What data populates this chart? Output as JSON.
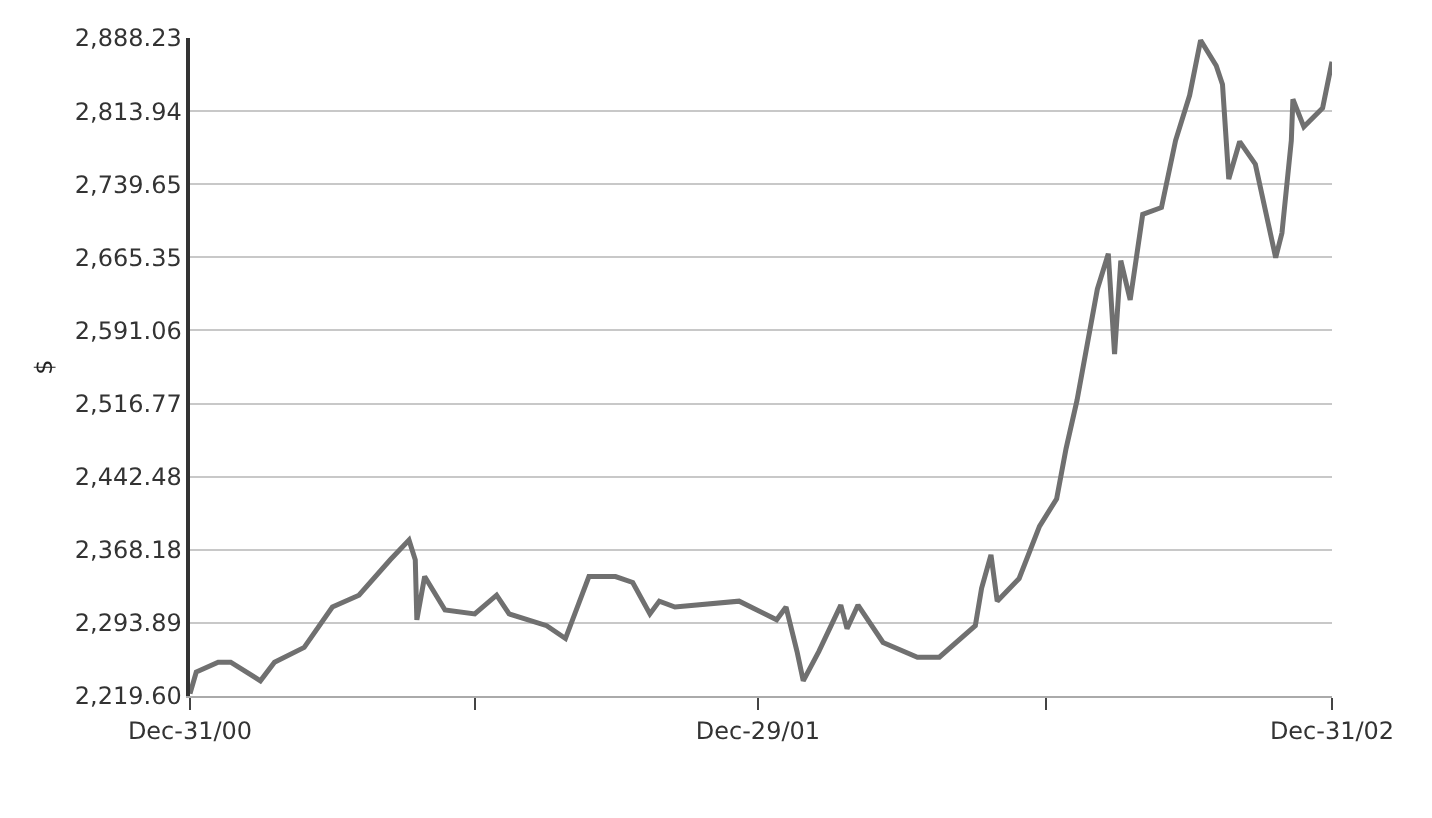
{
  "chart_data": {
    "type": "line",
    "ylabel": "$",
    "grid": "y",
    "marker": "none",
    "line_style": "solid",
    "xlim": [
      "2000-12-31",
      "2002-12-31"
    ],
    "xticks": [
      {
        "value": "2000-12-31",
        "label": "Dec-31/00"
      },
      {
        "value": "2001-07-01",
        "label": null
      },
      {
        "value": "2001-12-29",
        "label": "Dec-29/01"
      },
      {
        "value": "2002-07-01",
        "label": null
      },
      {
        "value": "2002-12-31",
        "label": "Dec-31/02"
      }
    ],
    "ylim": [
      2219.6,
      2888.23
    ],
    "yticks": [
      {
        "value": 2219.6,
        "label": "2,219.60"
      },
      {
        "value": 2293.89,
        "label": "2,293.89"
      },
      {
        "value": 2368.18,
        "label": "2,368.18"
      },
      {
        "value": 2442.48,
        "label": "2,442.48"
      },
      {
        "value": 2516.77,
        "label": "2,516.77"
      },
      {
        "value": 2591.06,
        "label": "2,591.06"
      },
      {
        "value": 2665.35,
        "label": "2,665.35"
      },
      {
        "value": 2739.65,
        "label": "2,739.65"
      },
      {
        "value": 2813.94,
        "label": "2,813.94"
      },
      {
        "value": 2888.23,
        "label": "2,888.23"
      }
    ],
    "x": [
      "2000-12-31",
      "2001-01-04",
      "2001-01-18",
      "2001-01-26",
      "2001-02-14",
      "2001-02-23",
      "2001-03-14",
      "2001-04-01",
      "2001-04-18",
      "2001-05-08",
      "2001-05-20",
      "2001-05-24",
      "2001-05-25",
      "2001-05-30",
      "2001-06-12",
      "2001-07-01",
      "2001-07-15",
      "2001-07-23",
      "2001-08-16",
      "2001-08-28",
      "2001-09-12",
      "2001-09-29",
      "2001-10-10",
      "2001-10-21",
      "2001-10-27",
      "2001-11-06",
      "2001-12-17",
      "2002-01-10",
      "2002-01-16",
      "2002-01-23",
      "2002-01-27",
      "2002-02-06",
      "2002-02-20",
      "2002-02-24",
      "2002-03-03",
      "2002-03-19",
      "2002-04-10",
      "2002-04-24",
      "2002-05-17",
      "2002-05-21",
      "2002-05-27",
      "2002-05-31",
      "2002-06-14",
      "2002-06-27",
      "2002-07-08",
      "2002-07-14",
      "2002-07-21",
      "2002-08-03",
      "2002-08-10",
      "2002-08-14",
      "2002-08-18",
      "2002-08-24",
      "2002-09-01",
      "2002-09-13",
      "2002-09-22",
      "2002-10-01",
      "2002-10-08",
      "2002-10-18",
      "2002-10-22",
      "2002-10-26",
      "2002-11-02",
      "2002-11-12",
      "2002-11-25",
      "2002-11-29",
      "2002-12-05",
      "2002-12-06",
      "2002-12-13",
      "2002-12-25",
      "2002-12-31"
    ],
    "series": [
      {
        "color": "#707070",
        "values": [
          2222,
          2244,
          2254,
          2254,
          2235,
          2254,
          2269,
          2310,
          2322,
          2358,
          2378,
          2358,
          2297,
          2341,
          2307,
          2303,
          2322,
          2303,
          2291,
          2278,
          2341,
          2341,
          2335,
          2303,
          2316,
          2310,
          2316,
          2297,
          2310,
          2265,
          2235,
          2265,
          2312,
          2288,
          2312,
          2274,
          2259,
          2259,
          2291,
          2329,
          2363,
          2316,
          2339,
          2392,
          2420,
          2471,
          2520,
          2633,
          2669,
          2567,
          2662,
          2622,
          2709,
          2716,
          2784,
          2830,
          2886,
          2860,
          2841,
          2745,
          2783,
          2760,
          2665,
          2690,
          2784,
          2826,
          2798,
          2817,
          2864
        ]
      }
    ]
  }
}
